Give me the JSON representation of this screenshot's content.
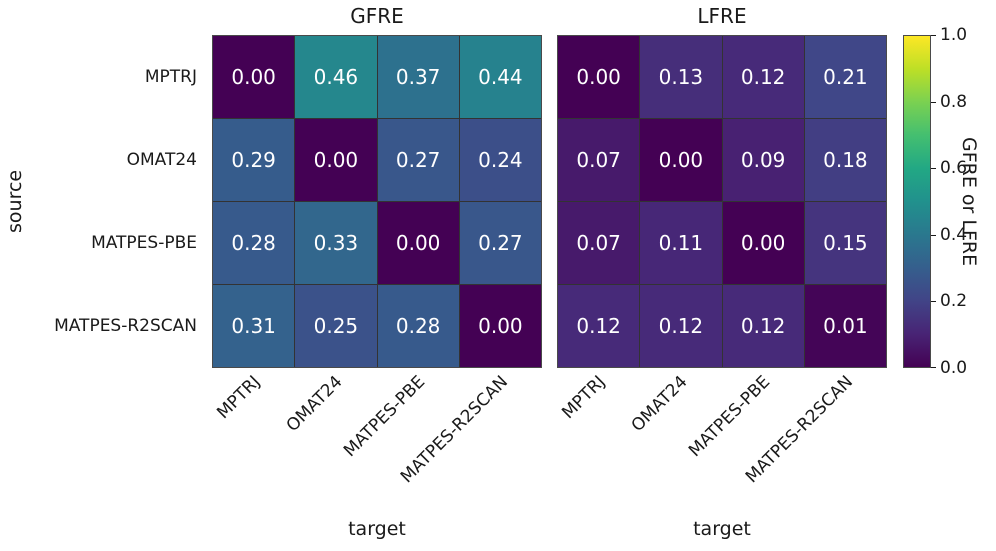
{
  "figure": {
    "ylabel": "source",
    "colorbar": {
      "label": "GFRE or LFRE",
      "ticks": [
        0.0,
        0.2,
        0.4,
        0.6,
        0.8,
        1.0
      ],
      "min": 0.0,
      "max": 1.0,
      "colormap": "viridis",
      "colormap_stops": [
        "#440154",
        "#482475",
        "#414487",
        "#355f8d",
        "#2a788e",
        "#21918d",
        "#22a884",
        "#44bf70",
        "#7ad151",
        "#bddf26",
        "#fde725"
      ]
    },
    "cell_text_color": "#ffffff",
    "grid_line_color": "#333333",
    "spine_color": "#4a4a4a"
  },
  "chart_data": [
    {
      "type": "heatmap",
      "title": "GFRE",
      "rows": [
        "MPTRJ",
        "OMAT24",
        "MATPES-PBE",
        "MATPES-R2SCAN"
      ],
      "columns": [
        "MPTRJ",
        "OMAT24",
        "MATPES-PBE",
        "MATPES-R2SCAN"
      ],
      "values": [
        [
          0.0,
          0.46,
          0.37,
          0.44
        ],
        [
          0.29,
          0.0,
          0.27,
          0.24
        ],
        [
          0.28,
          0.33,
          0.0,
          0.27
        ],
        [
          0.31,
          0.25,
          0.28,
          0.0
        ]
      ],
      "xlabel": "target",
      "ylabel": "source",
      "vmin": 0.0,
      "vmax": 1.0,
      "colormap": "viridis",
      "annotation_decimals": 2
    },
    {
      "type": "heatmap",
      "title": "LFRE",
      "rows": [
        "MPTRJ",
        "OMAT24",
        "MATPES-PBE",
        "MATPES-R2SCAN"
      ],
      "columns": [
        "MPTRJ",
        "OMAT24",
        "MATPES-PBE",
        "MATPES-R2SCAN"
      ],
      "values": [
        [
          0.0,
          0.13,
          0.12,
          0.21
        ],
        [
          0.07,
          0.0,
          0.09,
          0.18
        ],
        [
          0.07,
          0.11,
          0.0,
          0.15
        ],
        [
          0.12,
          0.12,
          0.12,
          0.01
        ]
      ],
      "xlabel": "target",
      "vmin": 0.0,
      "vmax": 1.0,
      "colormap": "viridis",
      "annotation_decimals": 2
    }
  ]
}
